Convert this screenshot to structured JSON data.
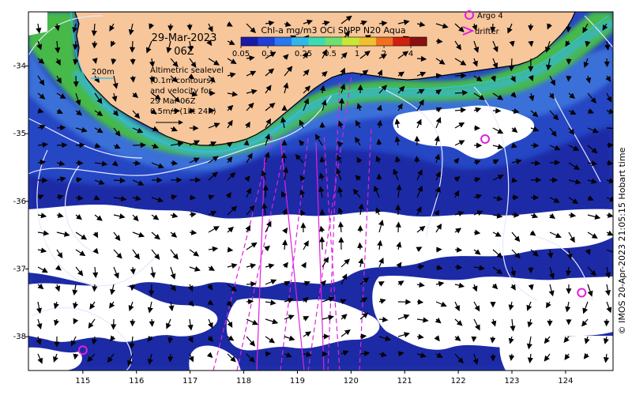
{
  "map": {
    "date": "29-Mar-2023",
    "time": "06Z",
    "isobath_label": "200m",
    "altimetry_note": [
      "Altimetric sealevel",
      "(0.1m contours)",
      "and velocity for",
      "29 Mar 06Z",
      "0.5m/s (1kt 24h)"
    ],
    "credit": "© IMOS 20-Apr-2023 21:05:15 Hobart time",
    "colors": {
      "land": "#f7c69b",
      "cloud": "#ffffff",
      "ocean_deep": "#1a2fb4",
      "ocean_mid": "#2f5fd0",
      "coastal_green": "#4cbf43",
      "track": "#e020e0",
      "contour": "#e8e8ff",
      "isobath": "#33c0f0"
    }
  },
  "colorbar": {
    "title": "Chl-a mg/m3 OCi SNPP N20 Aqua",
    "ticks": [
      "0.05",
      "0.1",
      "0.25",
      "0.5",
      "1",
      "2",
      "4"
    ],
    "colors": [
      "#1a1aa8",
      "#1f3fd8",
      "#2a78f0",
      "#2fb8e8",
      "#3ddcb0",
      "#6fe070",
      "#c8e838",
      "#f0c030",
      "#f07020",
      "#d02010",
      "#8a1010"
    ]
  },
  "legend": {
    "argo_label": "Argo 4",
    "drifter_label": "drifter"
  },
  "axes": {
    "x_ticks": [
      "115",
      "116",
      "117",
      "118",
      "119",
      "120",
      "121",
      "122",
      "123",
      "124"
    ],
    "y_ticks": [
      "-34",
      "-35",
      "-36",
      "-37",
      "-38"
    ]
  },
  "argo_floats": [
    {
      "lon": 122.5,
      "lat": -35.08
    },
    {
      "lon": 124.3,
      "lat": -37.35
    },
    {
      "lon": 115.0,
      "lat": -38.2
    }
  ]
}
